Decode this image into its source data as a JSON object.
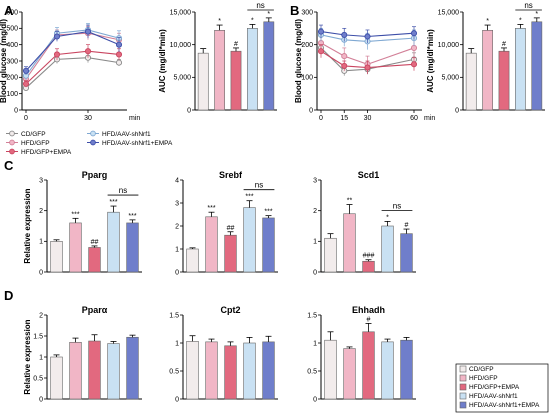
{
  "colors": {
    "cd_gfp": "#f2ecec",
    "hfd_gfp": "#f1b6c6",
    "hfd_gfp_empa": "#e2697f",
    "hfd_aav_shnrf1": "#c9e1f3",
    "hfd_aav_shnrf1_empa": "#6f7ecb",
    "axis": "#000000"
  },
  "panel_labels": {
    "a": "A",
    "b": "B",
    "c": "C",
    "d": "D"
  },
  "legend_ab": [
    "CD/GFP",
    "HFD/GFP",
    "HFD/GFP+EMPA",
    "HFD/AAV-shNrf1",
    "HFD/AAV-shNrf1+EMPA"
  ],
  "legend_d": [
    "CD/GFP",
    "HFD/GFP",
    "HFD/GFP+EMPA",
    "HFD/AAV-shNrf1",
    "HFD/AAV-shNrf1+EMPA"
  ],
  "chart_data": [
    {
      "id": "A-line",
      "type": "line",
      "ylabel": "Blood glucose (mg/dl)",
      "x_ticks": [
        "0",
        "30"
      ],
      "x_unit": "min",
      "x": [
        0,
        15,
        30,
        45
      ],
      "xlim": [
        0,
        45
      ],
      "ylim": [
        0,
        600
      ],
      "y_ticks": [
        "0",
        "100",
        "200",
        "300",
        "400",
        "500",
        "600"
      ],
      "series": [
        {
          "name": "CD/GFP",
          "values": [
            135,
            310,
            320,
            290
          ],
          "err": [
            15,
            25,
            30,
            20
          ]
        },
        {
          "name": "HFD/GFP",
          "values": [
            190,
            460,
            470,
            430
          ],
          "err": [
            20,
            30,
            40,
            40
          ]
        },
        {
          "name": "HFD/GFP+EMPA",
          "values": [
            160,
            340,
            360,
            340
          ],
          "err": [
            20,
            35,
            40,
            35
          ]
        },
        {
          "name": "HFD/AAV-shNrf1",
          "values": [
            210,
            470,
            490,
            440
          ],
          "err": [
            25,
            35,
            40,
            45
          ]
        },
        {
          "name": "HFD/AAV-shNrf1+EMPA",
          "values": [
            240,
            450,
            480,
            400
          ],
          "err": [
            25,
            30,
            40,
            45
          ]
        }
      ]
    },
    {
      "id": "A-auc",
      "type": "bar",
      "ylabel": "AUC (mg/dl*min)",
      "ylim": [
        0,
        15000
      ],
      "y_ticks": [
        "0",
        "5,000",
        "10,000",
        "15,000"
      ],
      "categories": [
        "CD/GFP",
        "HFD/GFP",
        "HFD/GFP+EMPA",
        "HFD/AAV-shNrf1",
        "HFD/AAV-shNrf1+EMPA"
      ],
      "values": [
        8700,
        12200,
        9000,
        12500,
        13500
      ],
      "err": [
        700,
        800,
        500,
        600,
        600
      ],
      "labels": [
        "",
        "*",
        "#",
        "*",
        "*"
      ],
      "ns_bracket": [
        3,
        4
      ],
      "ns_label": "ns"
    },
    {
      "id": "B-line",
      "type": "line",
      "ylabel": "Blood glucose (mg/dl)",
      "x_ticks": [
        "0",
        "15",
        "30",
        "60"
      ],
      "x_unit": "min",
      "x": [
        0,
        15,
        30,
        60
      ],
      "xlim": [
        0,
        60
      ],
      "ylim": [
        0,
        300
      ],
      "y_ticks": [
        "0",
        "100",
        "200",
        "300"
      ],
      "series": [
        {
          "name": "CD/GFP",
          "values": [
            190,
            120,
            125,
            155
          ],
          "err": [
            15,
            15,
            15,
            20
          ]
        },
        {
          "name": "HFD/GFP",
          "values": [
            205,
            165,
            140,
            190
          ],
          "err": [
            20,
            25,
            25,
            30
          ]
        },
        {
          "name": "HFD/GFP+EMPA",
          "values": [
            180,
            135,
            130,
            140
          ],
          "err": [
            20,
            15,
            20,
            20
          ]
        },
        {
          "name": "HFD/AAV-shNrf1",
          "values": [
            230,
            215,
            210,
            220
          ],
          "err": [
            20,
            20,
            25,
            25
          ]
        },
        {
          "name": "HFD/AAV-shNrf1+EMPA",
          "values": [
            240,
            230,
            225,
            235
          ],
          "err": [
            20,
            20,
            20,
            20
          ]
        }
      ]
    },
    {
      "id": "B-auc",
      "type": "bar",
      "ylabel": "AUC (mg/dl*min)",
      "ylim": [
        0,
        15000
      ],
      "y_ticks": [
        "0",
        "5,000",
        "10,000",
        "15,000"
      ],
      "categories": [
        "CD/GFP",
        "HFD/GFP",
        "HFD/GFP+EMPA",
        "HFD/AAV-shNrf1",
        "HFD/AAV-shNrf1+EMPA"
      ],
      "values": [
        8700,
        12200,
        9000,
        12500,
        13500
      ],
      "err": [
        700,
        800,
        500,
        600,
        600
      ],
      "labels": [
        "",
        "*",
        "#",
        "*",
        "*"
      ],
      "ns_bracket": [
        3,
        4
      ],
      "ns_label": "ns"
    },
    {
      "id": "C-pparg",
      "type": "bar",
      "title": "Pparg",
      "ylabel": "Relative expression",
      "ylim": [
        0,
        3
      ],
      "y_ticks": [
        "0",
        "1",
        "2",
        "3"
      ],
      "categories": [
        "CD/GFP",
        "HFD/GFP",
        "HFD/GFP+EMPA",
        "HFD/AAV-shNrf1",
        "HFD/AAV-shNrf1+EMPA"
      ],
      "values": [
        1.0,
        1.6,
        0.8,
        1.95,
        1.6
      ],
      "err": [
        0.05,
        0.15,
        0.05,
        0.2,
        0.1
      ],
      "labels": [
        "",
        "***",
        "##",
        "***",
        "***"
      ],
      "ns_bracket": [
        3,
        4
      ],
      "ns_label": "ns"
    },
    {
      "id": "C-srebf",
      "type": "bar",
      "title": "Srebf",
      "ylabel": "",
      "ylim": [
        0,
        4
      ],
      "y_ticks": [
        "0",
        "1",
        "2",
        "3",
        "4"
      ],
      "categories": [
        "CD/GFP",
        "HFD/GFP",
        "HFD/GFP+EMPA",
        "HFD/AAV-shNrf1",
        "HFD/AAV-shNrf1+EMPA"
      ],
      "values": [
        1.0,
        2.4,
        1.6,
        2.8,
        2.35
      ],
      "err": [
        0.05,
        0.2,
        0.15,
        0.3,
        0.1
      ],
      "labels": [
        "",
        "***",
        "##",
        "***",
        "***"
      ],
      "ns_bracket": [
        3,
        4
      ],
      "ns_label": "ns"
    },
    {
      "id": "C-scd1",
      "type": "bar",
      "title": "Scd1",
      "ylabel": "",
      "ylim": [
        0,
        3
      ],
      "y_ticks": [
        "0",
        "1",
        "2",
        "3"
      ],
      "categories": [
        "CD/GFP",
        "HFD/GFP",
        "HFD/GFP+EMPA",
        "HFD/AAV-shNrf1",
        "HFD/AAV-shNrf1+EMPA"
      ],
      "values": [
        1.1,
        1.9,
        0.35,
        1.5,
        1.25
      ],
      "err": [
        0.15,
        0.3,
        0.05,
        0.15,
        0.15
      ],
      "labels": [
        "",
        "**",
        "###",
        "*",
        "#"
      ],
      "ns_bracket": [
        3,
        4
      ],
      "ns_label": "ns"
    },
    {
      "id": "D-ppara",
      "type": "bar",
      "title": "Pparα",
      "ylabel": "Relative expression",
      "ylim": [
        0,
        2
      ],
      "y_ticks": [
        "0",
        "0.5",
        "1",
        "1.5",
        "2"
      ],
      "categories": [
        "CD/GFP",
        "HFD/GFP",
        "HFD/GFP+EMPA",
        "HFD/AAV-shNrf1",
        "HFD/AAV-shNrf1+EMPA"
      ],
      "values": [
        1.0,
        1.35,
        1.38,
        1.32,
        1.47
      ],
      "err": [
        0.05,
        0.1,
        0.15,
        0.05,
        0.05
      ],
      "labels": [
        "",
        "",
        "",
        "",
        ""
      ]
    },
    {
      "id": "D-cpt2",
      "type": "bar",
      "title": "Cpt2",
      "ylabel": "",
      "ylim": [
        0,
        1.5
      ],
      "y_ticks": [
        "0",
        "0.5",
        "1",
        "1.5"
      ],
      "categories": [
        "CD/GFP",
        "HFD/GFP",
        "HFD/GFP+EMPA",
        "HFD/AAV-shNrf1",
        "HFD/AAV-shNrf1+EMPA"
      ],
      "values": [
        1.03,
        1.02,
        0.95,
        1.0,
        1.02
      ],
      "err": [
        0.1,
        0.05,
        0.07,
        0.1,
        0.1
      ],
      "labels": [
        "",
        "",
        "",
        "",
        ""
      ]
    },
    {
      "id": "D-ehhadh",
      "type": "bar",
      "title": "Ehhadh",
      "ylabel": "",
      "ylim": [
        0,
        1.5
      ],
      "y_ticks": [
        "0",
        "0.5",
        "1",
        "1.5"
      ],
      "categories": [
        "CD/GFP",
        "HFD/GFP",
        "HFD/GFP+EMPA",
        "HFD/AAV-shNrf1",
        "HFD/AAV-shNrf1+EMPA"
      ],
      "values": [
        1.05,
        0.9,
        1.2,
        1.02,
        1.05
      ],
      "err": [
        0.15,
        0.03,
        0.15,
        0.05,
        0.05
      ],
      "labels": [
        "",
        "",
        "#",
        "",
        ""
      ]
    }
  ]
}
